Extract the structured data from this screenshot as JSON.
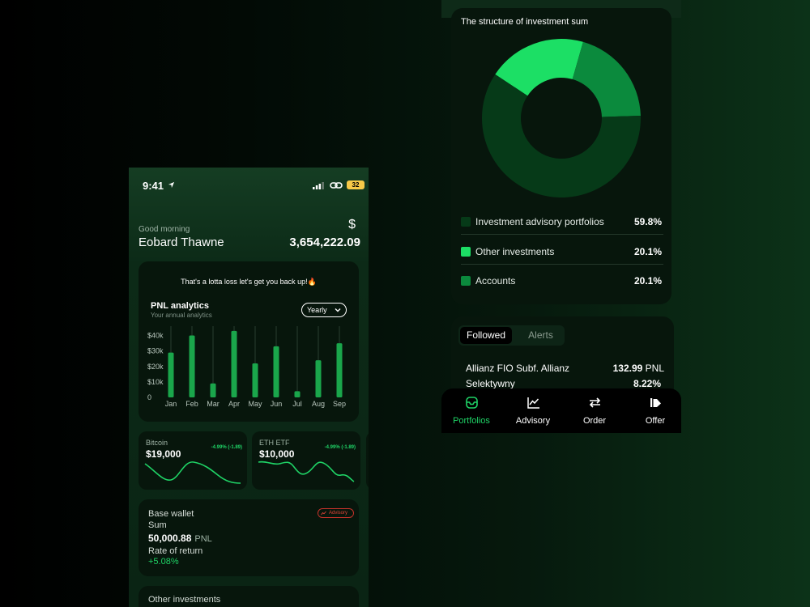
{
  "phone_left": {
    "status": {
      "time": "9:41",
      "battery": "32"
    },
    "header": {
      "greeting": "Good morning",
      "name": "Eobard Thawne",
      "currency": "$",
      "balance": "3,654,222.09"
    },
    "pnl": {
      "message": "That's a lotta loss let's get you back up!🔥",
      "title": "PNL analytics",
      "subtitle": "Your annual analytics",
      "period": "Yearly"
    },
    "mini_cards": [
      {
        "label": "Bitcoin",
        "value": "$19,000",
        "change": "-4.99% (-1.89)"
      },
      {
        "label": "ETH ETF",
        "value": "$10,000",
        "change": "-4.99% (-1.89)"
      }
    ],
    "wallet": {
      "title": "Base wallet",
      "sum_label": "Sum",
      "value": "50,000.88",
      "unit": "PNL",
      "ror_label": "Rate of return",
      "ror_value": "+5.08%",
      "badge": "Advisory"
    },
    "other": {
      "title": "Other investments"
    }
  },
  "chart_data": [
    {
      "type": "bar",
      "categories": [
        "Jan",
        "Feb",
        "Mar",
        "Apr",
        "May",
        "Jun",
        "Jul",
        "Aug",
        "Sep"
      ],
      "values": [
        29,
        40,
        9,
        43,
        22,
        33,
        4,
        24,
        35
      ],
      "ylim": [
        0,
        45
      ],
      "yticks": [
        {
          "value": 0,
          "label": "0"
        },
        {
          "value": 10,
          "label": "$10k"
        },
        {
          "value": 20,
          "label": "$20k"
        },
        {
          "value": 30,
          "label": "$30k"
        },
        {
          "value": 40,
          "label": "$40k"
        }
      ],
      "color": "#1aa64b"
    },
    {
      "type": "pie",
      "title": "The structure of investment sum",
      "slices": [
        {
          "label": "Investment advisory portfolios",
          "value": 59.8,
          "display": "59.8%",
          "color": "#063a18"
        },
        {
          "label": "Other investments",
          "value": 20.1,
          "display": "20.1%",
          "color": "#1cdf65"
        },
        {
          "label": "Accounts",
          "value": 20.1,
          "display": "20.1%",
          "color": "#0b8a3d"
        }
      ]
    }
  ],
  "followed": {
    "tabs": [
      "Followed",
      "Alerts"
    ],
    "fund_name": "Allianz FIO Subf. Allianz Selektywny",
    "fund_value": "132.99",
    "fund_unit": "PNL",
    "fund_pct": "8.22%"
  },
  "nav": [
    {
      "label": "Portfolios",
      "icon": "portfolio-icon",
      "active": true
    },
    {
      "label": "Advisory",
      "icon": "chart-line-icon",
      "active": false
    },
    {
      "label": "Order",
      "icon": "swap-arrows-icon",
      "active": false
    },
    {
      "label": "Offer",
      "icon": "offer-flag-icon",
      "active": false
    }
  ],
  "colors": {
    "accent": "#1fd366",
    "negative": "#e04338",
    "card": "#07160c"
  }
}
